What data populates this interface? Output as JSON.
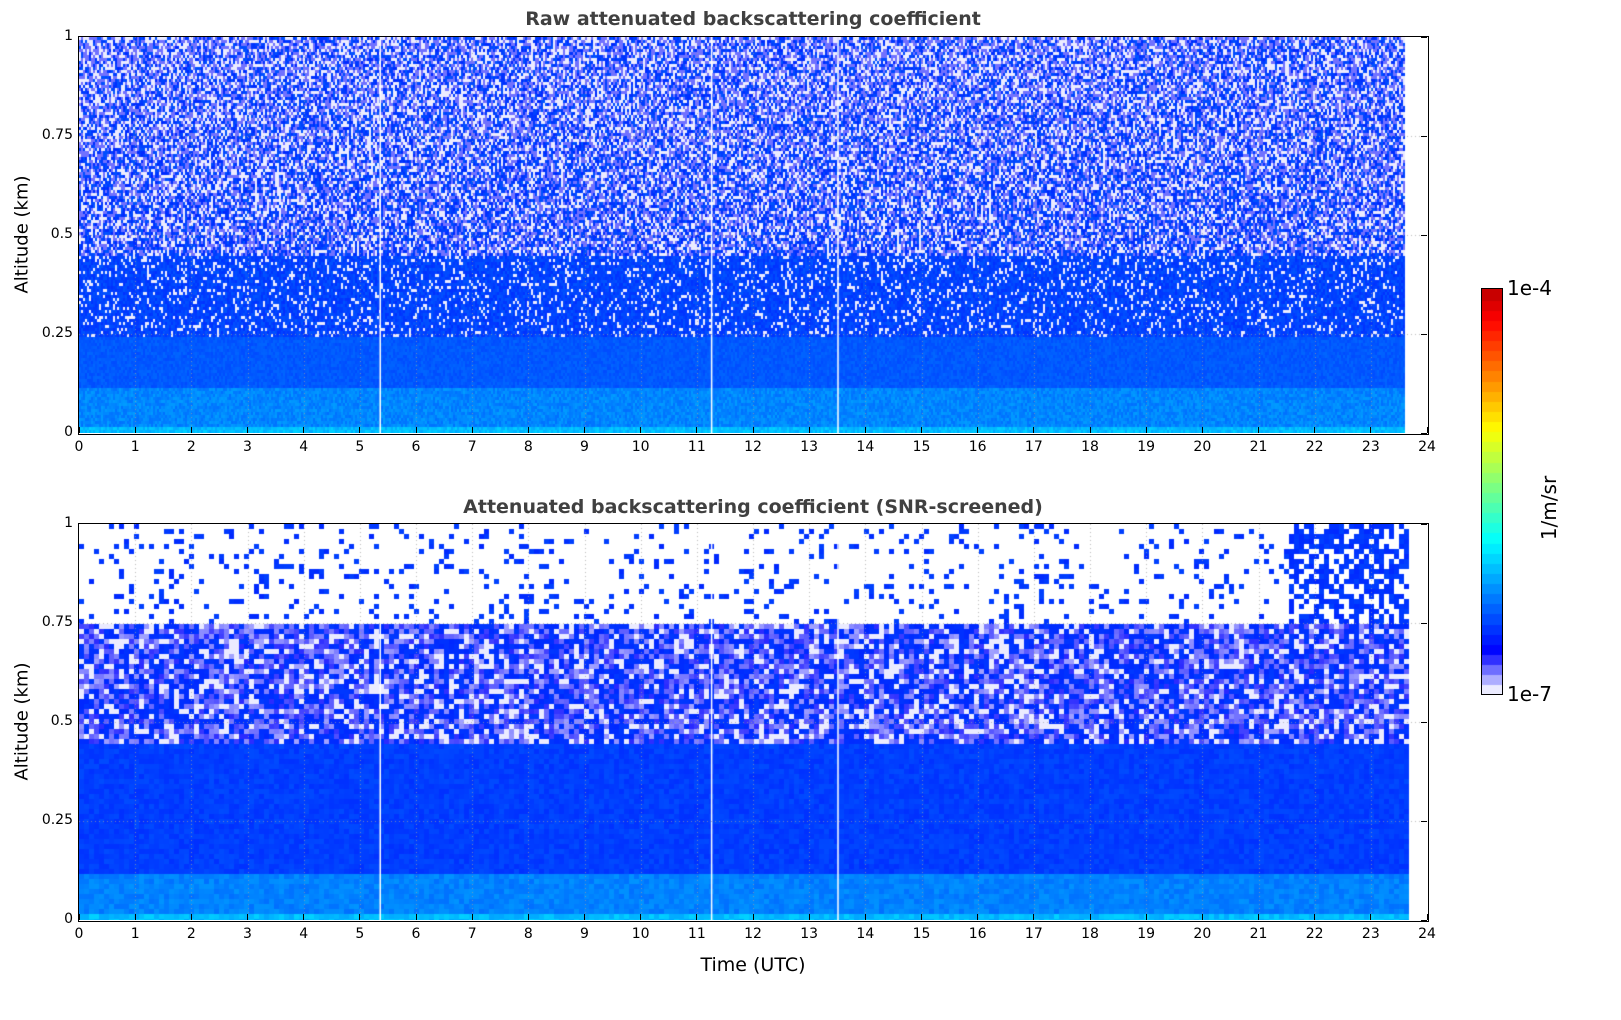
{
  "chart_data": [
    {
      "type": "heatmap",
      "title": "Raw attenuated backscattering coefficient",
      "xlabel": "",
      "ylabel": "Altitude (km)",
      "xlim": [
        0,
        24
      ],
      "ylim": [
        0,
        1
      ],
      "xticks": [
        "0",
        "1",
        "2",
        "3",
        "4",
        "5",
        "6",
        "7",
        "8",
        "9",
        "10",
        "11",
        "12",
        "13",
        "14",
        "15",
        "16",
        "17",
        "18",
        "19",
        "20",
        "21",
        "22",
        "23",
        "24"
      ],
      "yticks": [
        "0",
        "0.25",
        "0.5",
        "0.75",
        "1"
      ],
      "grid": true,
      "data_end_time": 23.6,
      "gap_times": [
        5.35,
        11.25,
        13.5
      ],
      "description_values": {
        "near_surface_level": 5e-06,
        "boundary_layer_top_km": 0.45,
        "upper_noise": true
      }
    },
    {
      "type": "heatmap",
      "title": "Attenuated backscattering coefficient (SNR-screened)",
      "xlabel": "Time (UTC)",
      "ylabel": "Altitude (km)",
      "xlim": [
        0,
        24
      ],
      "ylim": [
        0,
        1
      ],
      "xticks": [
        "0",
        "1",
        "2",
        "3",
        "4",
        "5",
        "6",
        "7",
        "8",
        "9",
        "10",
        "11",
        "12",
        "13",
        "14",
        "15",
        "16",
        "17",
        "18",
        "19",
        "20",
        "21",
        "22",
        "23",
        "24"
      ],
      "yticks": [
        "0",
        "0.25",
        "0.5",
        "0.75",
        "1"
      ],
      "grid": true,
      "data_end_time": 23.6,
      "gap_times": [
        5.35,
        11.25,
        13.5
      ],
      "description_values": {
        "screened_above_km": 0.75,
        "boundary_layer_top_km": 0.45
      }
    }
  ],
  "colorbar": {
    "label": "1/m/sr",
    "min_label": "1e-7",
    "max_label": "1e-4",
    "scale": "log",
    "colormap": "jet",
    "range": [
      1e-07,
      0.0001
    ]
  }
}
